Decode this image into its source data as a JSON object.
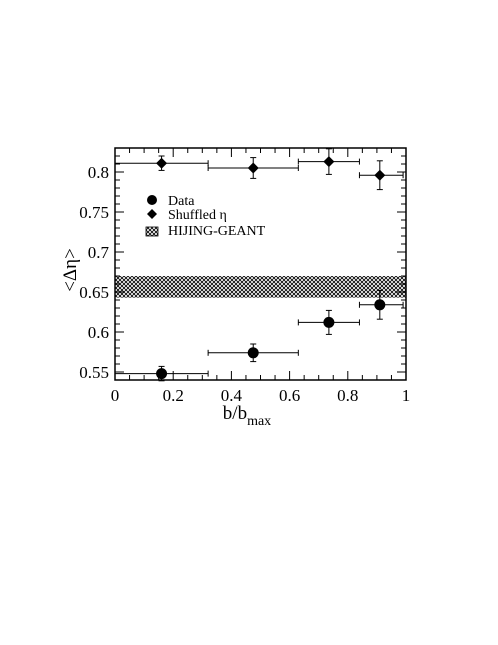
{
  "chart_data": {
    "type": "scatter",
    "xlabel": "b/b",
    "xlabel_sub": "max",
    "ylabel": "<Δη>",
    "xlim": [
      0,
      1
    ],
    "ylim": [
      0.54,
      0.83
    ],
    "x_ticks": [
      "0",
      "0.2",
      "0.4",
      "0.6",
      "0.8",
      "1"
    ],
    "y_ticks": [
      "0.55",
      "0.6",
      "0.65",
      "0.7",
      "0.75",
      "0.8"
    ],
    "series": [
      {
        "name": "Data",
        "marker": "circle",
        "points": [
          {
            "x": 0.16,
            "y": 0.548,
            "xerr": [
              0.0,
              0.32
            ],
            "yerr": 0.009
          },
          {
            "x": 0.475,
            "y": 0.574,
            "xerr": [
              0.32,
              0.63
            ],
            "yerr": 0.011
          },
          {
            "x": 0.735,
            "y": 0.612,
            "xerr": [
              0.63,
              0.84
            ],
            "yerr": 0.015
          },
          {
            "x": 0.91,
            "y": 0.634,
            "xerr": [
              0.84,
              0.99
            ],
            "yerr": 0.018
          }
        ]
      },
      {
        "name": "Shuffled η",
        "marker": "diamond",
        "points": [
          {
            "x": 0.16,
            "y": 0.811,
            "xerr": [
              0.0,
              0.32
            ],
            "yerr": 0.009
          },
          {
            "x": 0.475,
            "y": 0.805,
            "xerr": [
              0.32,
              0.63
            ],
            "yerr": 0.013
          },
          {
            "x": 0.735,
            "y": 0.813,
            "xerr": [
              0.63,
              0.84
            ],
            "yerr": 0.016
          },
          {
            "x": 0.91,
            "y": 0.796,
            "xerr": [
              0.84,
              0.99
            ],
            "yerr": 0.018
          }
        ]
      }
    ],
    "band": {
      "name": "HIJING-GEANT",
      "y_low": 0.643,
      "y_high": 0.67
    },
    "legend_position": "top-left"
  }
}
